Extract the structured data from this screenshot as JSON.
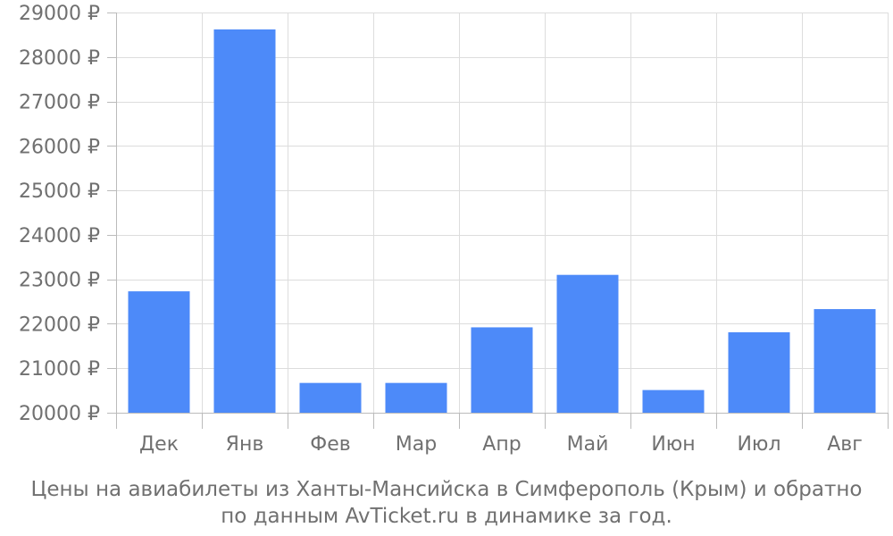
{
  "chart_data": {
    "type": "bar",
    "categories": [
      "Дек",
      "Янв",
      "Фев",
      "Мар",
      "Апр",
      "Май",
      "Июн",
      "Июл",
      "Авг"
    ],
    "values": [
      22730,
      28620,
      20670,
      20670,
      21920,
      23100,
      20510,
      21810,
      22330
    ],
    "ylim": [
      20000,
      29000
    ],
    "yticks": [
      20000,
      21000,
      22000,
      23000,
      24000,
      25000,
      26000,
      27000,
      28000,
      29000
    ],
    "ytick_suffix": " ₽",
    "grid": true,
    "bar_color": "#4d8af9",
    "grid_color": "#dddddd",
    "text_color": "#707070"
  },
  "caption": {
    "line1": "Цены на авиабилеты из Ханты-Мансийска в Симферополь (Крым) и обратно",
    "line2": "по данным AvTicket.ru в динамике за год."
  }
}
